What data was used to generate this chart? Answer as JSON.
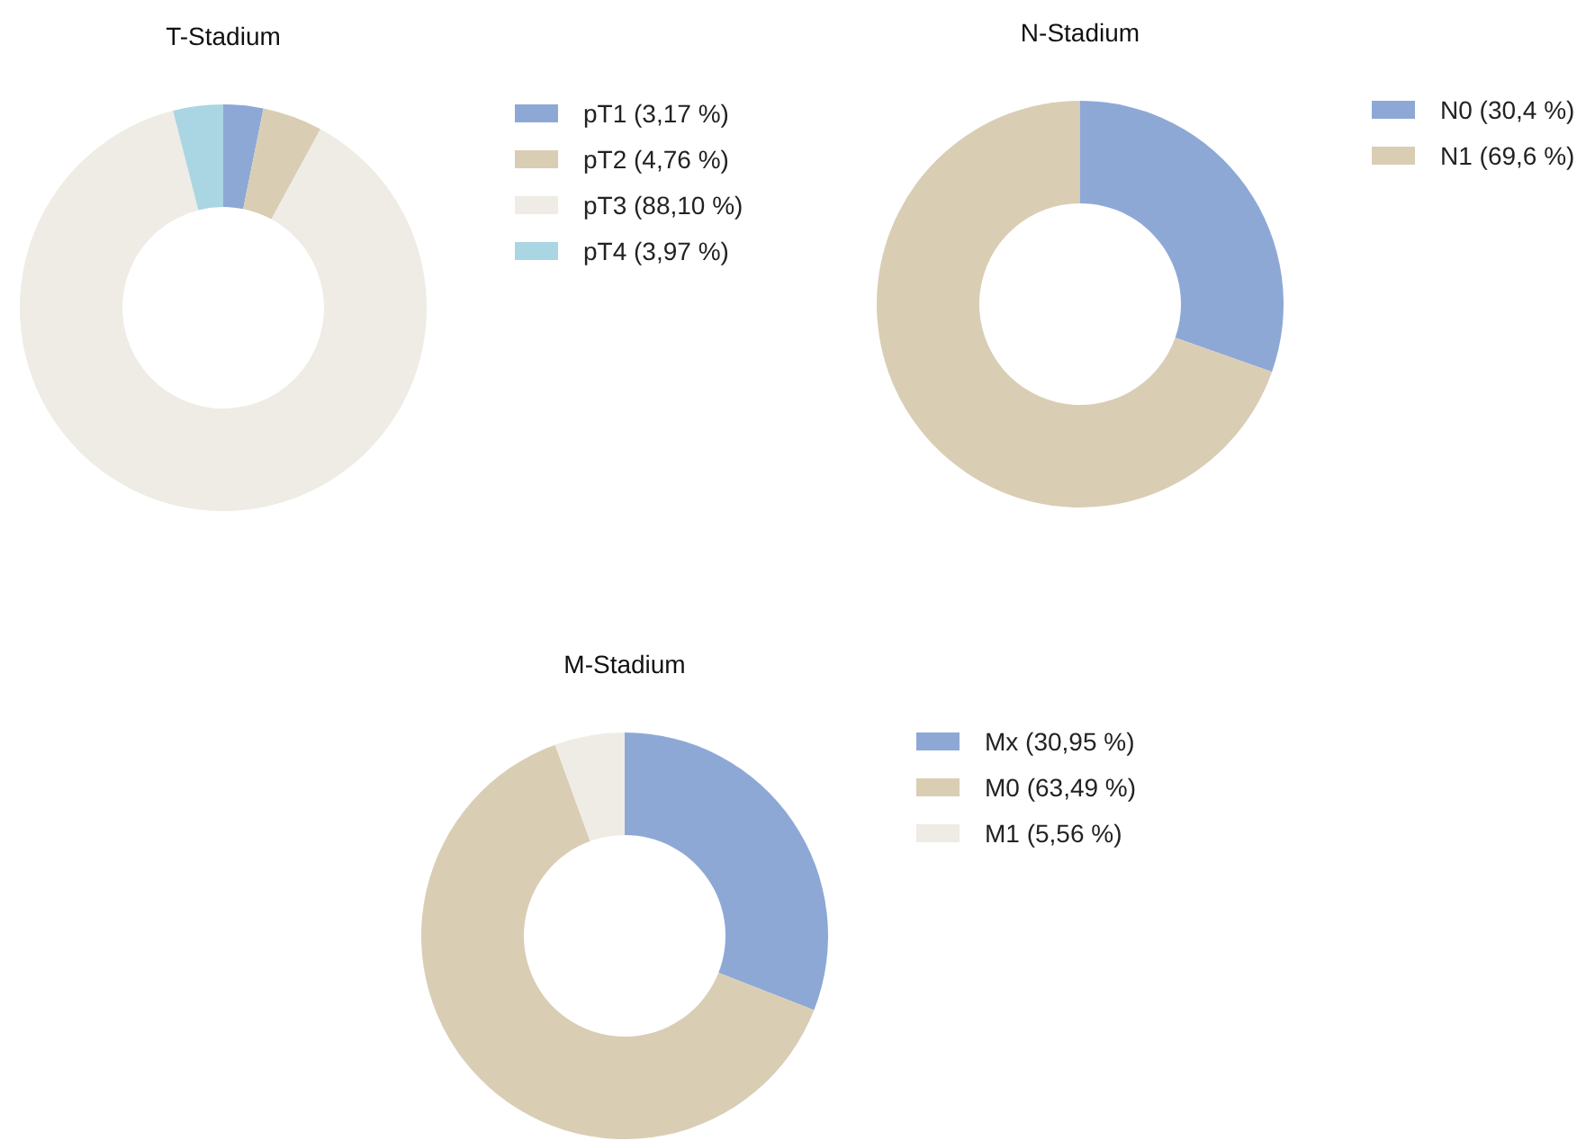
{
  "chart_data": [
    {
      "type": "donut",
      "title": "T-Stadium",
      "categories": [
        "pT1 (3,17 %)",
        "pT2 (4,76 %)",
        "pT3 (88,10 %)",
        "pT4 (3,97 %)"
      ],
      "values": [
        3.17,
        4.76,
        88.1,
        3.97
      ],
      "colors": [
        "#8ea8d6",
        "#d9cdb4",
        "#efebe5",
        "#a9d6e2"
      ],
      "legend": "top right"
    },
    {
      "type": "donut",
      "title": "N-Stadium",
      "categories": [
        "N0 (30,4 %)",
        "N1 (69,6 %)"
      ],
      "values": [
        30.4,
        69.6
      ],
      "colors": [
        "#8ea8d6",
        "#d9cdb4"
      ],
      "legend": "top right"
    },
    {
      "type": "donut",
      "title": "M-Stadium",
      "categories": [
        "Mx (30,95 %)",
        "M0 (63,49 %)",
        "M1 (5,56 %)"
      ],
      "values": [
        30.95,
        63.49,
        5.56
      ],
      "colors": [
        "#8ea8d6",
        "#d9cdb4",
        "#efebe5"
      ],
      "legend": "top right"
    }
  ]
}
